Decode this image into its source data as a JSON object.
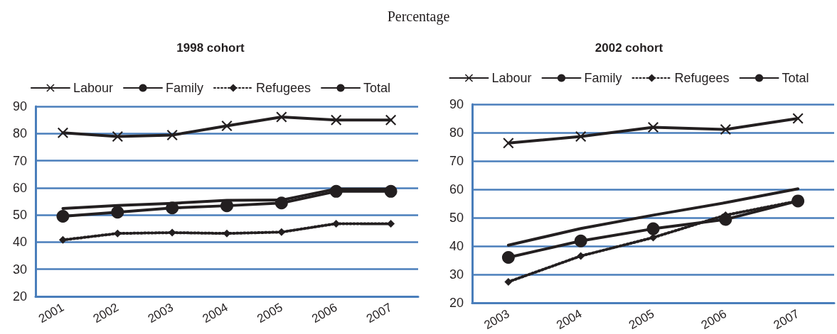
{
  "chart_data": [
    {
      "type": "line",
      "title": "1998 cohort",
      "annotations": [
        "Percentage"
      ],
      "categories": [
        "2001",
        "2002",
        "2003",
        "2004",
        "2005",
        "2006",
        "2007"
      ],
      "series": [
        {
          "name": "Labour",
          "color": "#231f20",
          "marker": "cross",
          "line_style": "solid",
          "values": [
            80.3,
            78.9,
            79.4,
            82.8,
            86.1,
            85.0,
            85.0
          ]
        },
        {
          "name": "Family",
          "color": "#231f20",
          "marker": "circle",
          "line_style": "solid",
          "values": [
            49.5,
            51.0,
            52.6,
            53.4,
            54.4,
            58.7,
            58.7
          ]
        },
        {
          "name": "Refugees",
          "color": "#231f20",
          "marker": "diamond",
          "line_style": "dotted",
          "values": [
            40.8,
            43.2,
            43.5,
            43.2,
            43.7,
            46.8,
            46.8
          ]
        },
        {
          "name": "Total",
          "color": "#231f20",
          "marker": "none",
          "line_style": "solid",
          "values": [
            52.4,
            53.5,
            54.3,
            55.4,
            55.5,
            59.6,
            59.6
          ]
        }
      ],
      "ylim": [
        20,
        90
      ],
      "yticks": [
        20,
        30,
        40,
        50,
        60,
        70,
        80,
        90
      ],
      "grid": "y",
      "legend": "top"
    },
    {
      "type": "line",
      "title": "2002 cohort",
      "categories": [
        "2003",
        "2004",
        "2005",
        "2006",
        "2007"
      ],
      "series": [
        {
          "name": "Labour",
          "color": "#231f20",
          "marker": "cross",
          "line_style": "solid",
          "values": [
            76.3,
            78.6,
            81.9,
            81.1,
            85.0
          ]
        },
        {
          "name": "Family",
          "color": "#231f20",
          "marker": "circle",
          "line_style": "solid",
          "values": [
            36.0,
            41.8,
            46.1,
            49.4,
            55.9
          ]
        },
        {
          "name": "Refugees",
          "color": "#231f20",
          "marker": "diamond",
          "line_style": "dotted",
          "values": [
            27.4,
            36.5,
            43.0,
            50.9,
            55.9
          ]
        },
        {
          "name": "Total",
          "color": "#231f20",
          "marker": "none",
          "line_style": "solid",
          "values": [
            40.3,
            46.2,
            50.9,
            55.3,
            60.2
          ]
        }
      ],
      "ylim": [
        20,
        90
      ],
      "yticks": [
        20,
        30,
        40,
        50,
        60,
        70,
        80,
        90
      ],
      "grid": "y",
      "legend": "top"
    }
  ]
}
